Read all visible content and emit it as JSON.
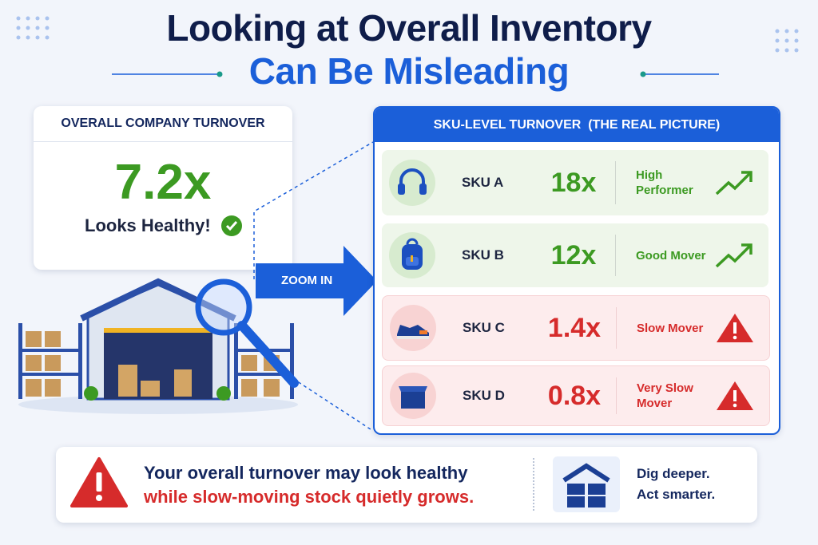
{
  "header": {
    "title_line1": "Looking at Overall Inventory",
    "title_line2": "Can Be Misleading"
  },
  "overall_card": {
    "heading": "OVERALL COMPANY TURNOVER",
    "value": "7.2x",
    "verdict": "Looks Healthy!"
  },
  "zoom_label": "ZOOM IN",
  "sku_panel": {
    "heading": "SKU-LEVEL TURNOVER  (THE REAL PICTURE)",
    "rows": [
      {
        "sku": "SKU A",
        "turnover": "18x",
        "status": "High Performer"
      },
      {
        "sku": "SKU B",
        "turnover": "12x",
        "status": "Good Mover"
      },
      {
        "sku": "SKU C",
        "turnover": "1.4x",
        "status": "Slow Mover"
      },
      {
        "sku": "SKU D",
        "turnover": "0.8x",
        "status": "Very Slow Mover"
      }
    ]
  },
  "footer": {
    "warning_line1": "Your overall turnover may look healthy",
    "warning_line2": "while slow-moving stock quietly grows.",
    "cta_line1": "Dig deeper.",
    "cta_line2": "Act smarter."
  }
}
